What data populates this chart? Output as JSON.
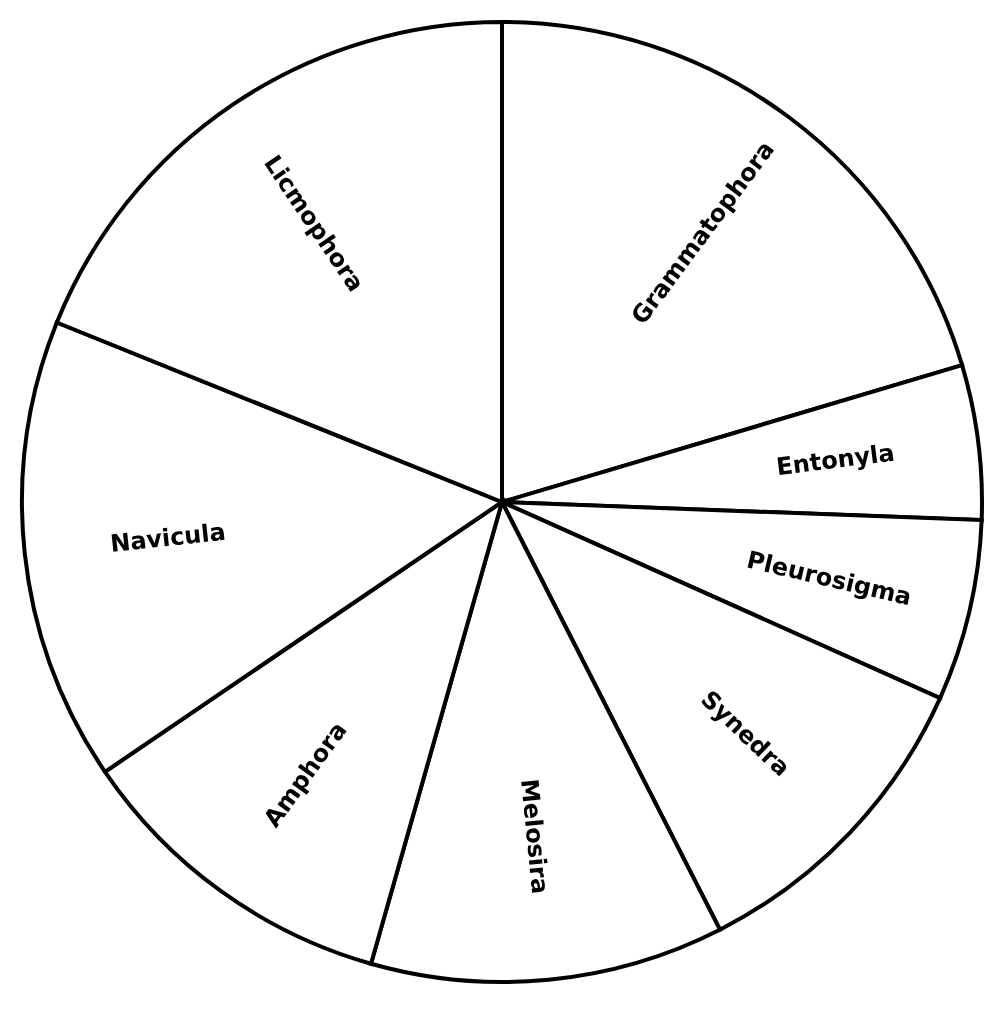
{
  "chart_data": {
    "type": "pie",
    "categories": [
      "Grammatophora",
      "Entonyla",
      "Pleurosigma",
      "Synedra",
      "Melosira",
      "Amphora",
      "Navicula",
      "Licmophora"
    ],
    "values": [
      20.4,
      5.2,
      6.1,
      10.8,
      11.9,
      11.1,
      15.6,
      18.9
    ],
    "colors": [
      "#ffffff",
      "#ffffff",
      "#ffffff",
      "#ffffff",
      "#ffffff",
      "#ffffff",
      "#ffffff",
      "#ffffff"
    ],
    "legend": false
  }
}
